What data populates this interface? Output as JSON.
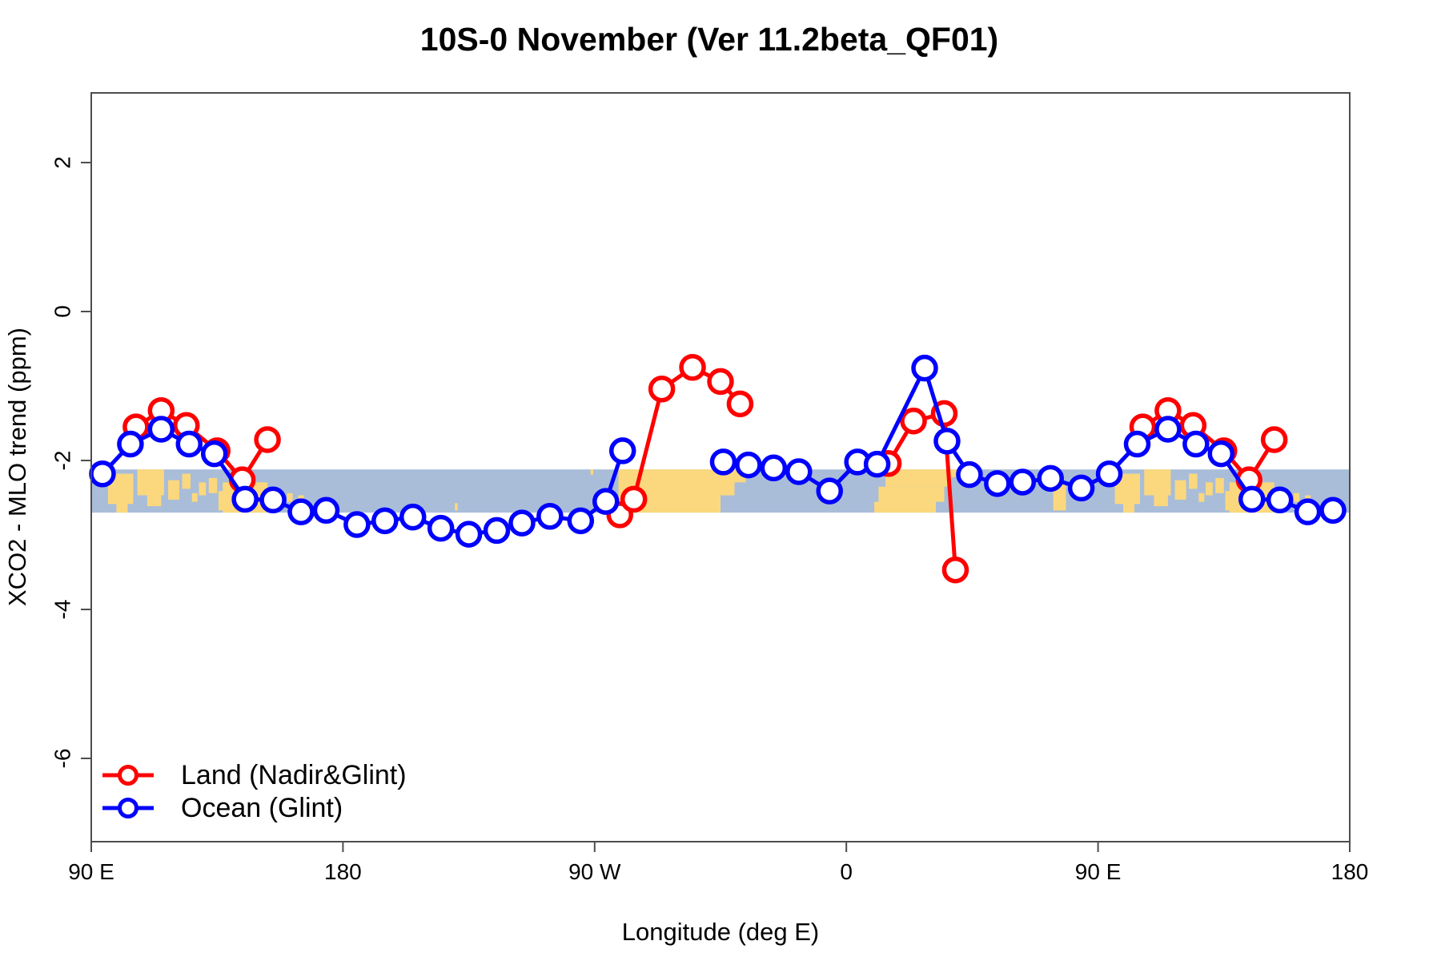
{
  "title": "10S-0 November (Ver 11.2beta_QF01)",
  "axis": {
    "xlabel": "Longitude (deg E)",
    "ylabel": "XCO2 - MLO trend (ppm)"
  },
  "legend": {
    "items": [
      {
        "label": "Land (Nadir&Glint)",
        "color": "#ff0000"
      },
      {
        "label": "Ocean (Glint)",
        "color": "#0000ff"
      }
    ]
  },
  "chart_data": {
    "type": "line",
    "title": "10S-0 November (Ver 11.2beta_QF01)",
    "xlabel": "Longitude (deg E)",
    "ylabel": "XCO2 - MLO trend (ppm)",
    "x_unit_note": "x is axis position in degrees east of 90E; axis spans 450 deg wrapping 90E->180->90W->0->90E->180, so data in 90E-180 is drawn twice",
    "x_axis": {
      "range": [
        0,
        450
      ],
      "ticks": [
        {
          "p": 0,
          "label": "90 E"
        },
        {
          "p": 90,
          "label": "180"
        },
        {
          "p": 180,
          "label": "90 W"
        },
        {
          "p": 270,
          "label": "0"
        },
        {
          "p": 360,
          "label": "90 E"
        },
        {
          "p": 450,
          "label": "180"
        }
      ]
    },
    "y_axis": {
      "range": [
        -7.1,
        2.95
      ],
      "ticks": [
        {
          "v": 2,
          "label": "2"
        },
        {
          "v": 0,
          "label": "0"
        },
        {
          "v": -2,
          "label": "-2"
        },
        {
          "v": -4,
          "label": "-4"
        },
        {
          "v": -6,
          "label": "-6"
        }
      ]
    },
    "grid": false,
    "legend_position": "inside bottom-left",
    "series": [
      {
        "name": "Land (Nadir&Glint)",
        "key": "land",
        "color": "#ff0000",
        "segments": [
          [
            [
              16,
              -1.55
            ],
            [
              25,
              -1.33
            ],
            [
              34,
              -1.53
            ],
            [
              45,
              -1.87
            ],
            [
              54,
              -2.26
            ],
            [
              63,
              -1.72
            ]
          ],
          [
            [
              189,
              -2.73
            ],
            [
              194,
              -2.52
            ],
            [
              204,
              -1.04
            ],
            [
              215,
              -0.75
            ],
            [
              225,
              -0.94
            ],
            [
              232,
              -1.24
            ]
          ],
          [
            [
              285,
              -2.04
            ],
            [
              294,
              -1.47
            ],
            [
              305,
              -1.37
            ],
            [
              309,
              -3.47
            ]
          ],
          [
            [
              376,
              -1.55
            ],
            [
              385,
              -1.33
            ],
            [
              394,
              -1.53
            ],
            [
              405,
              -1.87
            ],
            [
              414,
              -2.26
            ],
            [
              423,
              -1.72
            ]
          ]
        ]
      },
      {
        "name": "Ocean (Glint)",
        "key": "ocean",
        "color": "#0000ff",
        "segments": [
          [
            [
              4,
              -2.18
            ],
            [
              14,
              -1.78
            ],
            [
              25,
              -1.58
            ],
            [
              35,
              -1.78
            ],
            [
              44,
              -1.91
            ],
            [
              55,
              -2.52
            ],
            [
              65,
              -2.53
            ],
            [
              75,
              -2.69
            ],
            [
              84,
              -2.67
            ],
            [
              95,
              -2.86
            ],
            [
              105,
              -2.81
            ],
            [
              115,
              -2.76
            ],
            [
              125,
              -2.91
            ],
            [
              135,
              -2.99
            ],
            [
              145,
              -2.94
            ],
            [
              154,
              -2.84
            ],
            [
              164,
              -2.75
            ],
            [
              175,
              -2.81
            ],
            [
              184,
              -2.55
            ],
            [
              190,
              -1.87
            ]
          ],
          [
            [
              226,
              -2.02
            ],
            [
              235,
              -2.06
            ],
            [
              244,
              -2.1
            ],
            [
              253,
              -2.15
            ],
            [
              264,
              -2.41
            ],
            [
              274,
              -2.02
            ],
            [
              281,
              -2.05
            ],
            [
              298,
              -0.76
            ],
            [
              306,
              -1.74
            ],
            [
              314,
              -2.19
            ],
            [
              324,
              -2.31
            ],
            [
              333,
              -2.29
            ],
            [
              343,
              -2.24
            ],
            [
              354,
              -2.37
            ],
            [
              364,
              -2.18
            ],
            [
              374,
              -1.78
            ],
            [
              385,
              -1.58
            ],
            [
              395,
              -1.78
            ],
            [
              404,
              -1.91
            ],
            [
              415,
              -2.52
            ],
            [
              425,
              -2.53
            ],
            [
              435,
              -2.69
            ],
            [
              444,
              -2.67
            ]
          ]
        ]
      }
    ],
    "map_strip": {
      "description": "world map band for latitude 10S-0 drawn across the plot",
      "y_top": -2.12,
      "y_bottom": -2.7,
      "ocean_color": "#a9bdd9",
      "land_color": "#fbd87d",
      "land_patches": [
        {
          "p": [
            6,
            15
          ],
          "y": [
            0.1,
            0.8
          ],
          "repeat": true
        },
        {
          "p": [
            9,
            13
          ],
          "y": [
            0.75,
            1.0
          ],
          "repeat": true
        },
        {
          "p": [
            16.5,
            26
          ],
          "y": [
            0.0,
            0.6
          ],
          "repeat": true
        },
        {
          "p": [
            20,
            25
          ],
          "y": [
            0.6,
            0.85
          ],
          "repeat": true
        },
        {
          "p": [
            27.5,
            31.5
          ],
          "y": [
            0.25,
            0.7
          ],
          "repeat": true
        },
        {
          "p": [
            32.5,
            35.5
          ],
          "y": [
            0.1,
            0.45
          ],
          "repeat": true
        },
        {
          "p": [
            36,
            38
          ],
          "y": [
            0.55,
            0.75
          ],
          "repeat": true
        },
        {
          "p": [
            38.5,
            41
          ],
          "y": [
            0.3,
            0.6
          ],
          "repeat": true
        },
        {
          "p": [
            42,
            45
          ],
          "y": [
            0.2,
            0.55
          ],
          "repeat": true
        },
        {
          "p": [
            45.5,
            48.5
          ],
          "y": [
            0.5,
            0.95
          ],
          "repeat": true
        },
        {
          "p": [
            47,
            63
          ],
          "y": [
            0.3,
            1.0
          ],
          "repeat": true
        },
        {
          "p": [
            50,
            57
          ],
          "y": [
            0.05,
            0.35
          ],
          "repeat": true
        },
        {
          "p": [
            65,
            68.5
          ],
          "y": [
            0.5,
            0.85
          ],
          "repeat": true
        },
        {
          "p": [
            70,
            72
          ],
          "y": [
            0.55,
            0.75
          ],
          "repeat": true
        },
        {
          "p": [
            74,
            76
          ],
          "y": [
            0.6,
            0.8
          ],
          "repeat": true
        },
        {
          "p": [
            130,
            131
          ],
          "y": [
            0.78,
            0.95
          ],
          "repeat": false
        },
        {
          "p": [
            178.5,
            179.5
          ],
          "y": [
            0.0,
            0.12
          ],
          "repeat": false
        },
        {
          "p": [
            188.5,
            225
          ],
          "y": [
            0.0,
            1.0
          ],
          "repeat": false
        },
        {
          "p": [
            225,
            230
          ],
          "y": [
            0.0,
            0.6
          ],
          "repeat": false
        },
        {
          "p": [
            230,
            234
          ],
          "y": [
            0.0,
            0.3
          ],
          "repeat": false
        },
        {
          "p": [
            284,
            307.5
          ],
          "y": [
            0.0,
            0.4
          ],
          "repeat": false
        },
        {
          "p": [
            281.5,
            305
          ],
          "y": [
            0.4,
            0.75
          ],
          "repeat": false
        },
        {
          "p": [
            280,
            302
          ],
          "y": [
            0.75,
            1.0
          ],
          "repeat": false
        },
        {
          "p": [
            307.5,
            309.5
          ],
          "y": [
            0.0,
            0.18
          ],
          "repeat": false
        },
        {
          "p": [
            344,
            348.5
          ],
          "y": [
            0.35,
            0.95
          ],
          "repeat": false
        },
        {
          "p": [
            351.5,
            354
          ],
          "y": [
            0.5,
            0.7
          ],
          "repeat": false
        }
      ]
    }
  }
}
